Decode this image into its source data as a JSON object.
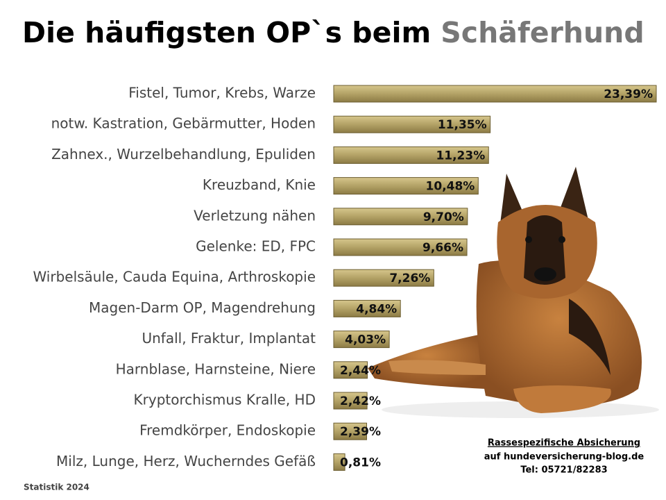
{
  "chart_data": {
    "type": "bar",
    "orientation": "horizontal",
    "title": "Die häufigsten OP`s beim",
    "title_highlight": "Schäferhund",
    "categories": [
      "Fistel, Tumor, Krebs, Warze",
      "notw. Kastration, Gebärmutter, Hoden",
      "Zahnex., Wurzelbehandlung, Epuliden",
      "Kreuzband, Knie",
      "Verletzung nähen",
      "Gelenke: ED, FPC",
      "Wirbelsäule, Cauda Equina, Arthroskopie",
      "Magen-Darm OP, Magendrehung",
      "Unfall, Fraktur, Implantat",
      "Harnblase, Harnsteine, Niere",
      "Kryptorchismus Kralle, HD",
      "Fremdkörper, Endoskopie",
      "Milz, Lunge, Herz, Wucherndes Gefäß"
    ],
    "values": [
      23.39,
      11.35,
      11.23,
      10.48,
      9.7,
      9.66,
      7.26,
      4.84,
      4.03,
      2.44,
      2.42,
      2.39,
      0.81
    ],
    "value_labels": [
      "23,39%",
      "11,35%",
      "11,23%",
      "10,48%",
      "9,70%",
      "9,66%",
      "7,26%",
      "4,84%",
      "4,03%",
      "2,44%",
      "2,42%",
      "2,39%",
      "0,81%"
    ],
    "color": "#b3a266",
    "footnote": "Statistik 2024",
    "info": [
      "Rassespezifische  Absicherung",
      "auf hundeversicherung-blog.de",
      "Tel: 05721/82283"
    ]
  }
}
